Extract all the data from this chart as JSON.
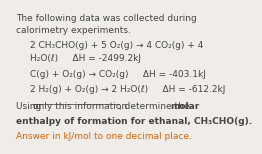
{
  "bg_color": "#f0ede8",
  "text_color": "#444444",
  "orange_color": "#d4660a",
  "fontsize": 6.5,
  "line1": "The following data was collected during",
  "line2": "calorimetry experiments.",
  "rxn1a": "2 CH₃CHO(g) + 5 O₂(g) → 4 CO₂(g) + 4",
  "rxn1b": "H₂O(ℓ)     ΔH = -2499.2kJ",
  "rxn2": "C(g) + O₂(g) → CO₂(g)     ΔH = -403.1kJ",
  "rxn3": "2 H₂(g) + O₂(g) → 2 H₂O(ℓ)     ΔH = -612.2kJ",
  "using_pre": "Using ",
  "using_underline": "only this information",
  "using_post": ", determine the ",
  "using_bold": "molar",
  "bold_line": "enthalpy of formation for ethanal, CH₃CHO(g).",
  "answer_line": "Answer in kJ/mol to one decimal place."
}
